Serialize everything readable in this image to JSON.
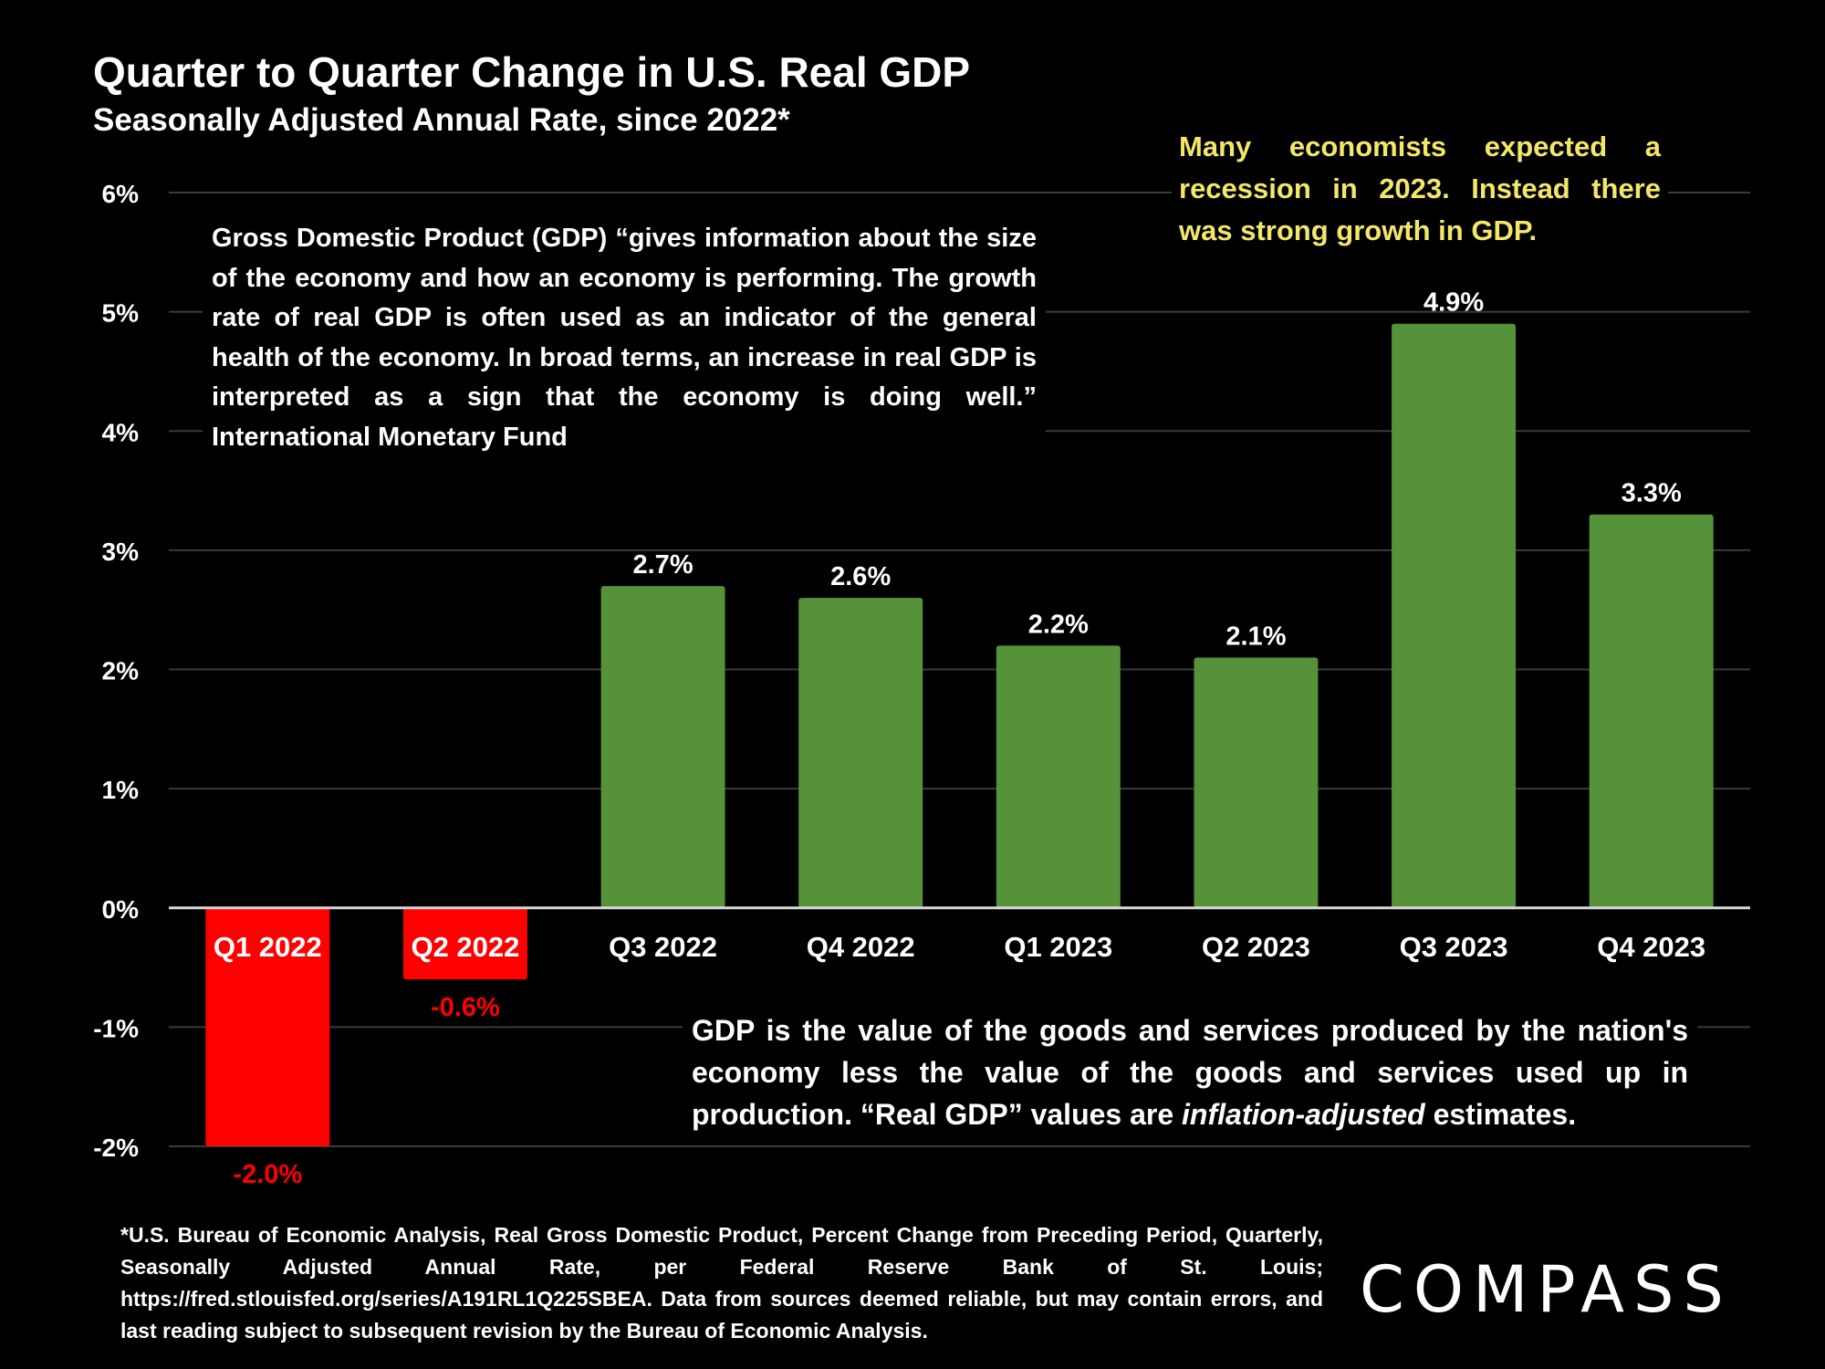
{
  "chart_data": {
    "type": "bar",
    "title": "Quarter to Quarter Change in U.S. Real GDP",
    "subtitle": "Seasonally Adjusted Annual Rate, since 2022*",
    "categories": [
      "Q1 2022",
      "Q2 2022",
      "Q3 2022",
      "Q4 2022",
      "Q1 2023",
      "Q2 2023",
      "Q3 2023",
      "Q4 2023"
    ],
    "values": [
      -2.0,
      -0.6,
      2.7,
      2.6,
      2.2,
      2.1,
      4.9,
      3.3
    ],
    "data_labels": [
      "-2.0%",
      "-0.6%",
      "2.7%",
      "2.6%",
      "2.2%",
      "2.1%",
      "4.9%",
      "3.3%"
    ],
    "ylim": [
      -2,
      6
    ],
    "yticks": [
      6,
      5,
      4,
      3,
      2,
      1,
      0,
      -1,
      -2
    ],
    "ytick_labels": [
      "6%",
      "5%",
      "4%",
      "3%",
      "2%",
      "1%",
      "0%",
      "-1%",
      "-2%"
    ],
    "xlabel": "",
    "ylabel": "",
    "grid": true,
    "colors": {
      "positive": "#55923a",
      "negative": "#ff0000",
      "grid": "#3a3a3a",
      "axis": "#d9d9d9"
    }
  },
  "annotations": {
    "imf_quote": "Gross Domestic Product (GDP) “gives information about the size of the economy and how an economy is performing. The growth rate of real GDP is often used as an indicator of the general health of the economy. In broad terms, an increase in real GDP is interpreted as a sign that the economy is doing well.” International Monetary Fund",
    "recession_note": "Many economists expected a recession in 2023. Instead there was strong growth in GDP.",
    "definition_part1": "GDP is the value of the goods and services produced by the nation's economy less the value of the goods and services used up in production. “Real GDP” values are ",
    "definition_emphasis": "inflation-adjusted",
    "definition_part2": " estimates.",
    "recession_color": "#f3e76a"
  },
  "footnote": "*U.S. Bureau of Economic Analysis, Real Gross Domestic Product, Percent Change from Preceding Period, Quarterly, Seasonally Adjusted Annual Rate, per Federal Reserve Bank of St. Louis; https://fred.stlouisfed.org/series/A191RL1Q225SBEA. Data from sources deemed reliable, but may contain errors, and last reading subject to subsequent revision by the Bureau of Economic Analysis.",
  "logo": "COMPASS"
}
